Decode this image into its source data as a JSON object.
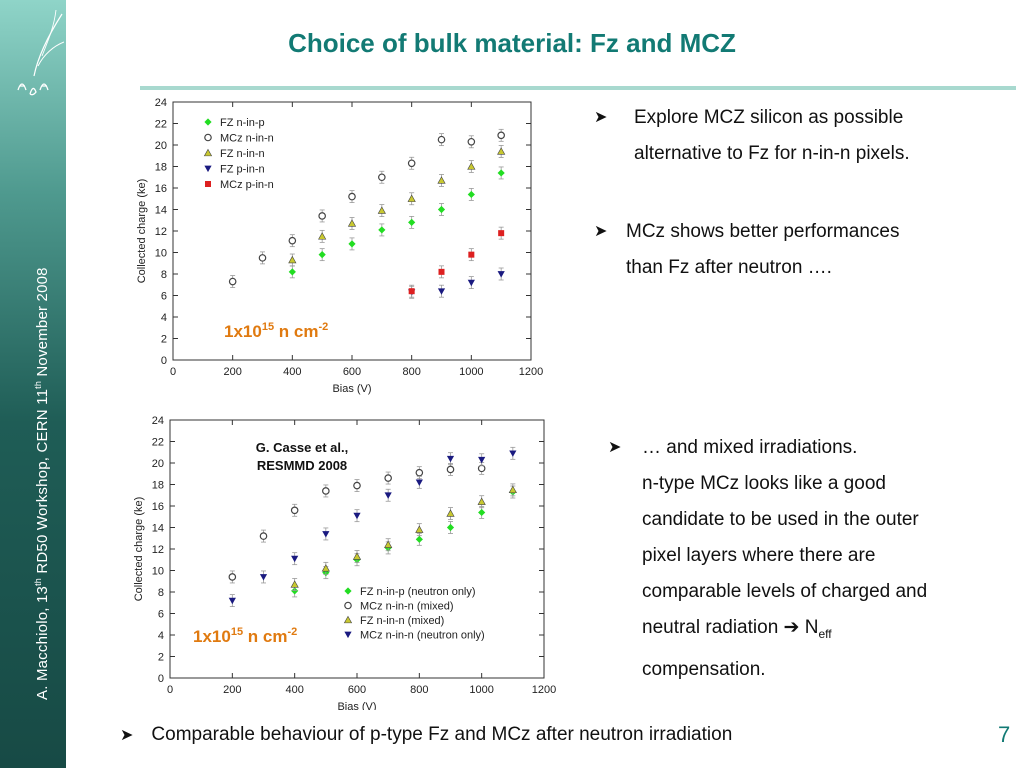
{
  "slide": {
    "title": "Choice of bulk material:  Fz and MCZ",
    "page_number": "7",
    "sidebar_text": "A. Macchiolo, 13th RD50 Workshop, CERN 11th November 2008",
    "sidebar_parts": [
      "A. Macchiolo, 13",
      "th",
      " RD50 Workshop, CERN 11",
      "th",
      " November 2008"
    ],
    "bullets": [
      {
        "lines": [
          "Explore MCZ silicon as possible",
          "alternative to Fz for n-in-n pixels."
        ]
      },
      {
        "lines": [
          "MCz shows better performances",
          "than Fz after neutron …."
        ]
      },
      {
        "lines": [
          "… and mixed irradiations.",
          "n-type  MCz looks like a good",
          "candidate to be used in the outer",
          "pixel layers where there are",
          "comparable levels of charged and",
          "neutral radiation ➔ N",
          "compensation."
        ],
        "subscript": "eff"
      }
    ],
    "bottom_bullet": "Comparable  behaviour of p-type Fz and MCz after neutron irradiation",
    "accent_color": "#127a74",
    "label_color": "#e07a10"
  },
  "chart_data": [
    {
      "type": "scatter",
      "title": "",
      "xlabel": "Bias (V)",
      "ylabel": "Collected charge (ke)",
      "xlim": [
        0,
        1200
      ],
      "ylim": [
        0,
        24
      ],
      "xticks": [
        0,
        200,
        400,
        600,
        800,
        1000,
        1200
      ],
      "yticks": [
        0,
        2,
        4,
        6,
        8,
        10,
        12,
        14,
        16,
        18,
        20,
        22,
        24
      ],
      "annotation": {
        "base": "1x10",
        "exp": "15",
        "unit": " n cm",
        "unit_exp": "-2"
      },
      "series": [
        {
          "name": "FZ n-in-p",
          "marker": "diamond",
          "color": "#22dd22",
          "x": [
            400,
            500,
            600,
            700,
            800,
            900,
            1000,
            1100
          ],
          "y": [
            8.2,
            9.8,
            10.8,
            12.1,
            12.8,
            14.0,
            15.4,
            17.4
          ]
        },
        {
          "name": "MCz n-in-n",
          "marker": "circle-open",
          "color": "#444444",
          "x": [
            200,
            300,
            400,
            500,
            600,
            700,
            800,
            900,
            1000,
            1100
          ],
          "y": [
            7.3,
            9.5,
            11.1,
            13.4,
            15.2,
            17.0,
            18.3,
            20.5,
            20.3,
            20.9
          ]
        },
        {
          "name": "FZ n-in-n",
          "marker": "triangle-up",
          "color": "#c8c830",
          "x": [
            400,
            500,
            600,
            700,
            800,
            900,
            1000,
            1100
          ],
          "y": [
            9.3,
            11.5,
            12.7,
            13.9,
            15.0,
            16.7,
            18.0,
            19.4
          ]
        },
        {
          "name": "FZ p-in-n",
          "marker": "triangle-down",
          "color": "#1a1a80",
          "x": [
            800,
            900,
            1000,
            1100
          ],
          "y": [
            6.3,
            6.4,
            7.2,
            8.0
          ]
        },
        {
          "name": "MCz p-in-n",
          "marker": "square",
          "color": "#dd2020",
          "x": [
            800,
            900,
            1000,
            1100
          ],
          "y": [
            6.4,
            8.2,
            9.8,
            11.8
          ]
        }
      ]
    },
    {
      "type": "scatter",
      "title": "",
      "xlabel": "Bias (V)",
      "ylabel": "Collected charge (ke)",
      "xlim": [
        0,
        1200
      ],
      "ylim": [
        0,
        24
      ],
      "xticks": [
        0,
        200,
        400,
        600,
        800,
        1000,
        1200
      ],
      "yticks": [
        0,
        2,
        4,
        6,
        8,
        10,
        12,
        14,
        16,
        18,
        20,
        22,
        24
      ],
      "annotation": {
        "base": "1x10",
        "exp": "15",
        "unit": " n cm",
        "unit_exp": "-2"
      },
      "citation": [
        "G. Casse et al.,",
        "RESMMD 2008"
      ],
      "series": [
        {
          "name": "FZ n-in-p (neutron only)",
          "marker": "diamond",
          "color": "#22dd22",
          "x": [
            400,
            500,
            600,
            700,
            800,
            900,
            1000,
            1100
          ],
          "y": [
            8.1,
            9.8,
            11.0,
            12.1,
            12.9,
            14.0,
            15.4,
            17.3
          ]
        },
        {
          "name": "MCz n-in-n (mixed)",
          "marker": "circle-open",
          "color": "#444444",
          "x": [
            200,
            300,
            400,
            500,
            600,
            700,
            800,
            900,
            1000
          ],
          "y": [
            9.4,
            13.2,
            15.6,
            17.4,
            17.9,
            18.6,
            19.1,
            19.4,
            19.5
          ]
        },
        {
          "name": "FZ n-in-n (mixed)",
          "marker": "triangle-up",
          "color": "#c8c830",
          "x": [
            400,
            500,
            600,
            700,
            800,
            900,
            1000,
            1100
          ],
          "y": [
            8.7,
            10.2,
            11.3,
            12.4,
            13.8,
            15.3,
            16.4,
            17.5
          ]
        },
        {
          "name": "MCz n-in-n (neutron only)",
          "marker": "triangle-down",
          "color": "#1a1a80",
          "x": [
            200,
            300,
            400,
            500,
            600,
            700,
            800,
            900,
            1000,
            1100
          ],
          "y": [
            7.2,
            9.4,
            11.1,
            13.4,
            15.1,
            17.0,
            18.2,
            20.4,
            20.3,
            20.9
          ]
        }
      ]
    }
  ]
}
